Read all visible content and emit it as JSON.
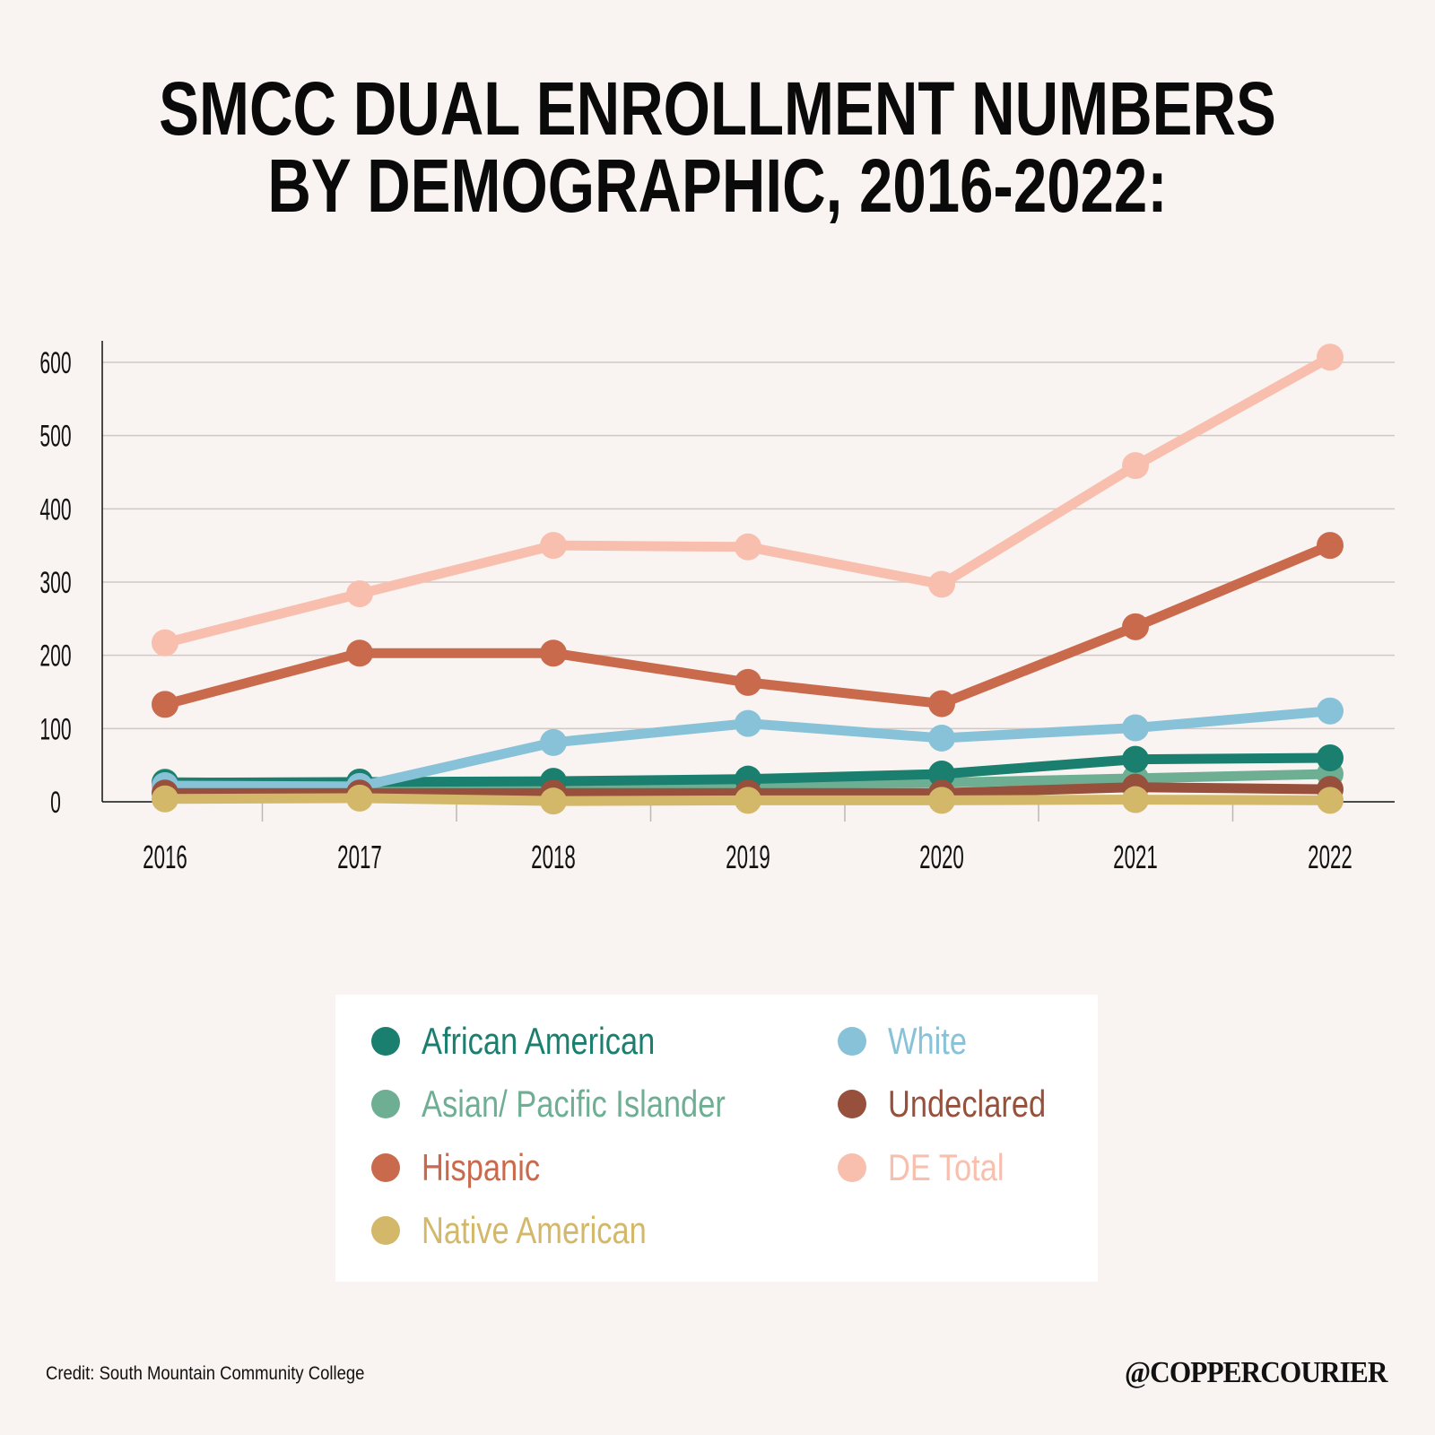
{
  "title": {
    "line1": "SMCC DUAL ENROLLMENT NUMBERS",
    "line2": "BY DEMOGRAPHIC, 2016-2022:"
  },
  "chart_data": {
    "type": "line",
    "title": "SMCC DUAL ENROLLMENT NUMBERS BY DEMOGRAPHIC, 2016-2022:",
    "xlabel": "",
    "ylabel": "",
    "x": [
      "2016",
      "2017",
      "2018",
      "2019",
      "2020",
      "2021",
      "2022"
    ],
    "ylim": [
      0,
      600
    ],
    "yticks": [
      0,
      100,
      200,
      300,
      400,
      500,
      600
    ],
    "grid": true,
    "legend_position": "bottom-center",
    "series": [
      {
        "name": "DE Total",
        "color": "#f8bfae",
        "values": [
          217,
          284,
          350,
          348,
          297,
          459,
          607
        ]
      },
      {
        "name": "Hispanic",
        "color": "#c96a4d",
        "values": [
          133,
          203,
          203,
          163,
          134,
          239,
          350
        ]
      },
      {
        "name": "White",
        "color": "#88c2d8",
        "values": [
          22,
          21,
          81,
          107,
          87,
          101,
          124
        ]
      },
      {
        "name": "African American",
        "color": "#1a7f6e",
        "values": [
          26,
          27,
          28,
          31,
          38,
          58,
          60
        ]
      },
      {
        "name": "Asian/ Pacific Islander",
        "color": "#6eaf93",
        "values": [
          27,
          24,
          24,
          24,
          26,
          32,
          38
        ]
      },
      {
        "name": "Undeclared",
        "color": "#96503b",
        "values": [
          12,
          12,
          12,
          12,
          12,
          20,
          17
        ]
      },
      {
        "name": "Native American",
        "color": "#d4b86a",
        "values": [
          4,
          5,
          1,
          2,
          2,
          3,
          2
        ]
      }
    ]
  },
  "legend": {
    "items": [
      {
        "label": "African American",
        "color": "#1a7f6e"
      },
      {
        "label": "Asian/ Pacific Islander",
        "color": "#6eaf93"
      },
      {
        "label": "Hispanic",
        "color": "#c96a4d"
      },
      {
        "label": "Native American",
        "color": "#d4b86a"
      },
      {
        "label": "White",
        "color": "#88c2d8"
      },
      {
        "label": "Undeclared",
        "color": "#96503b"
      },
      {
        "label": "DE Total",
        "color": "#f8bfae"
      }
    ]
  },
  "footer": {
    "credit": "Credit: South Mountain Community College",
    "brand": "@COPPERCOURIER"
  },
  "colors": {
    "background": "#f9f4f1",
    "gridline": "#cfc8c4",
    "axis": "#111111"
  }
}
